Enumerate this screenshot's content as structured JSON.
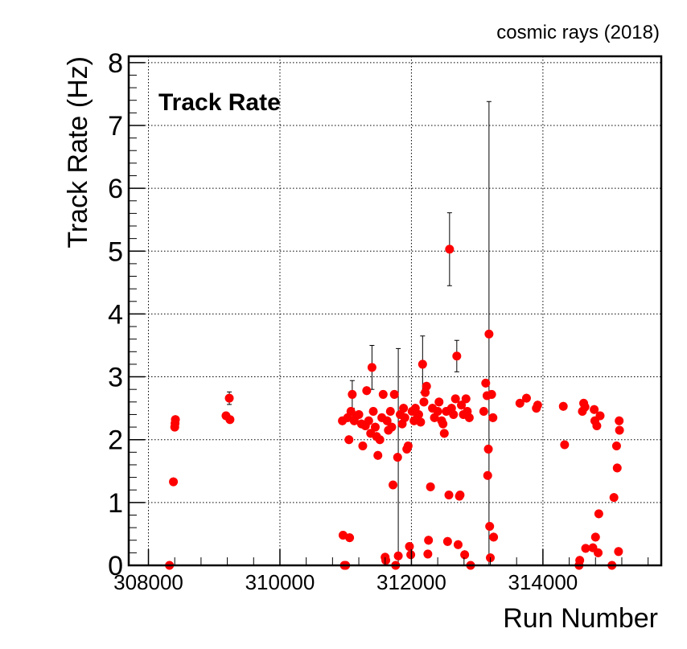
{
  "chart_data": {
    "type": "scatter",
    "corner_label": "cosmic rays (2018)",
    "title": "Track Rate",
    "xlabel": "Run Number",
    "ylabel": "Track Rate (Hz)",
    "xlim": [
      307700,
      315800
    ],
    "ylim": [
      0,
      8.1
    ],
    "grid": true,
    "marker_color": "#ff0000",
    "x_ticks": [
      308000,
      310000,
      312000,
      314000
    ],
    "y_ticks": [
      0,
      1,
      2,
      3,
      4,
      5,
      6,
      7,
      8
    ],
    "points": [
      {
        "x": 308320,
        "y": 0.0
      },
      {
        "x": 308380,
        "y": 1.33
      },
      {
        "x": 308400,
        "y": 2.2
      },
      {
        "x": 308405,
        "y": 2.26
      },
      {
        "x": 308410,
        "y": 2.32
      },
      {
        "x": 309180,
        "y": 2.38
      },
      {
        "x": 309230,
        "y": 2.66,
        "err": 0.1
      },
      {
        "x": 309240,
        "y": 2.32
      },
      {
        "x": 310950,
        "y": 2.3
      },
      {
        "x": 310960,
        "y": 0.48
      },
      {
        "x": 310980,
        "y": 0.0
      },
      {
        "x": 311000,
        "y": 0.0
      },
      {
        "x": 311030,
        "y": 2.35
      },
      {
        "x": 311050,
        "y": 2.0
      },
      {
        "x": 311060,
        "y": 0.44
      },
      {
        "x": 311080,
        "y": 2.45
      },
      {
        "x": 311100,
        "y": 2.72,
        "err": 0.22
      },
      {
        "x": 311130,
        "y": 2.3
      },
      {
        "x": 311160,
        "y": 2.38
      },
      {
        "x": 311200,
        "y": 2.4
      },
      {
        "x": 311240,
        "y": 2.25
      },
      {
        "x": 311260,
        "y": 1.9
      },
      {
        "x": 311300,
        "y": 2.22
      },
      {
        "x": 311320,
        "y": 2.78
      },
      {
        "x": 311350,
        "y": 2.3
      },
      {
        "x": 311380,
        "y": 2.1
      },
      {
        "x": 311400,
        "y": 3.15,
        "err": 0.35
      },
      {
        "x": 311420,
        "y": 2.45
      },
      {
        "x": 311450,
        "y": 2.2
      },
      {
        "x": 311470,
        "y": 2.05
      },
      {
        "x": 311490,
        "y": 1.75
      },
      {
        "x": 311520,
        "y": 2.0
      },
      {
        "x": 311550,
        "y": 2.35
      },
      {
        "x": 311570,
        "y": 2.72
      },
      {
        "x": 311600,
        "y": 0.13
      },
      {
        "x": 311610,
        "y": 0.08
      },
      {
        "x": 311630,
        "y": 2.3
      },
      {
        "x": 311650,
        "y": 2.15
      },
      {
        "x": 311680,
        "y": 2.45
      },
      {
        "x": 311700,
        "y": 2.2
      },
      {
        "x": 311720,
        "y": 1.28
      },
      {
        "x": 311740,
        "y": 2.72
      },
      {
        "x": 311760,
        "y": 0.0
      },
      {
        "x": 311790,
        "y": 1.72
      },
      {
        "x": 311800,
        "y": 0.15,
        "err": 3.3
      },
      {
        "x": 311830,
        "y": 2.4
      },
      {
        "x": 311860,
        "y": 2.25
      },
      {
        "x": 311880,
        "y": 2.5
      },
      {
        "x": 311900,
        "y": 2.35
      },
      {
        "x": 311930,
        "y": 1.85
      },
      {
        "x": 311950,
        "y": 1.9
      },
      {
        "x": 311970,
        "y": 0.3
      },
      {
        "x": 311990,
        "y": 0.17
      },
      {
        "x": 312010,
        "y": 2.45
      },
      {
        "x": 312040,
        "y": 2.3
      },
      {
        "x": 312060,
        "y": 2.5
      },
      {
        "x": 312090,
        "y": 2.35
      },
      {
        "x": 312110,
        "y": 2.4
      },
      {
        "x": 312140,
        "y": 2.28
      },
      {
        "x": 312170,
        "y": 3.2,
        "err": 0.45
      },
      {
        "x": 312190,
        "y": 2.6
      },
      {
        "x": 312210,
        "y": 2.75
      },
      {
        "x": 312230,
        "y": 2.85
      },
      {
        "x": 312250,
        "y": 0.18
      },
      {
        "x": 312260,
        "y": 0.4
      },
      {
        "x": 312290,
        "y": 1.25
      },
      {
        "x": 312320,
        "y": 2.5
      },
      {
        "x": 312350,
        "y": 2.35
      },
      {
        "x": 312400,
        "y": 2.45
      },
      {
        "x": 312420,
        "y": 2.6
      },
      {
        "x": 312460,
        "y": 2.3
      },
      {
        "x": 312480,
        "y": 2.25
      },
      {
        "x": 312500,
        "y": 2.1
      },
      {
        "x": 312530,
        "y": 2.45
      },
      {
        "x": 312550,
        "y": 0.38
      },
      {
        "x": 312570,
        "y": 1.12
      },
      {
        "x": 312580,
        "y": 5.03,
        "err": 0.58
      },
      {
        "x": 312610,
        "y": 2.5
      },
      {
        "x": 312640,
        "y": 2.4
      },
      {
        "x": 312670,
        "y": 2.65
      },
      {
        "x": 312690,
        "y": 3.33,
        "err": 0.25
      },
      {
        "x": 312710,
        "y": 0.33
      },
      {
        "x": 312730,
        "y": 1.1
      },
      {
        "x": 312740,
        "y": 1.12
      },
      {
        "x": 312760,
        "y": 2.55
      },
      {
        "x": 312790,
        "y": 2.4
      },
      {
        "x": 312810,
        "y": 0.17
      },
      {
        "x": 312830,
        "y": 2.65
      },
      {
        "x": 312850,
        "y": 2.45
      },
      {
        "x": 312880,
        "y": 2.35
      },
      {
        "x": 312900,
        "y": 0.0
      },
      {
        "x": 313100,
        "y": 2.45
      },
      {
        "x": 313130,
        "y": 2.9
      },
      {
        "x": 313150,
        "y": 2.7
      },
      {
        "x": 313160,
        "y": 1.43
      },
      {
        "x": 313170,
        "y": 1.85
      },
      {
        "x": 313180,
        "y": 3.68,
        "err": 3.7
      },
      {
        "x": 313190,
        "y": 0.62
      },
      {
        "x": 313200,
        "y": 0.12
      },
      {
        "x": 313220,
        "y": 2.72
      },
      {
        "x": 313240,
        "y": 2.35
      },
      {
        "x": 313250,
        "y": 0.45
      },
      {
        "x": 313650,
        "y": 2.58
      },
      {
        "x": 313750,
        "y": 2.66
      },
      {
        "x": 313900,
        "y": 2.5
      },
      {
        "x": 313920,
        "y": 2.55
      },
      {
        "x": 314310,
        "y": 2.53
      },
      {
        "x": 314330,
        "y": 1.92
      },
      {
        "x": 314550,
        "y": 0.0
      },
      {
        "x": 314560,
        "y": 0.08
      },
      {
        "x": 314600,
        "y": 2.45
      },
      {
        "x": 314620,
        "y": 2.58
      },
      {
        "x": 314640,
        "y": 2.52
      },
      {
        "x": 314650,
        "y": 0.27
      },
      {
        "x": 314760,
        "y": 0.28
      },
      {
        "x": 314780,
        "y": 2.48
      },
      {
        "x": 314790,
        "y": 2.3
      },
      {
        "x": 314800,
        "y": 0.45
      },
      {
        "x": 314820,
        "y": 2.22
      },
      {
        "x": 314840,
        "y": 0.2
      },
      {
        "x": 314850,
        "y": 0.82
      },
      {
        "x": 314870,
        "y": 2.38
      },
      {
        "x": 315050,
        "y": 0.0
      },
      {
        "x": 315080,
        "y": 1.08
      },
      {
        "x": 315120,
        "y": 1.9
      },
      {
        "x": 315130,
        "y": 1.55
      },
      {
        "x": 315150,
        "y": 0.22
      },
      {
        "x": 315160,
        "y": 2.3
      },
      {
        "x": 315165,
        "y": 2.15
      }
    ]
  }
}
